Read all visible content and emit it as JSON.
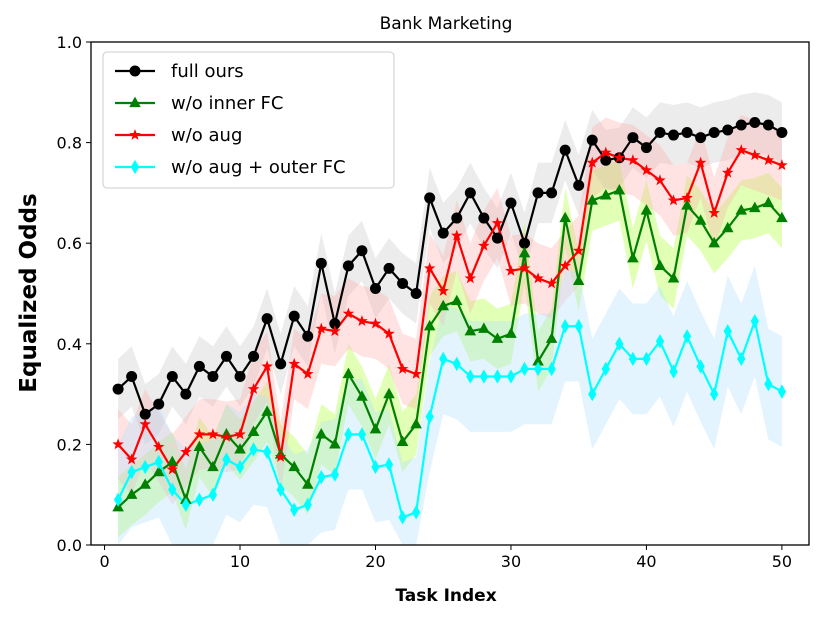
{
  "chart_data": {
    "type": "line",
    "title": "Bank Marketing",
    "xlabel": "Task Index",
    "ylabel": "Equalized Odds",
    "xlim": [
      -1,
      52
    ],
    "ylim": [
      0.0,
      1.0
    ],
    "xticks": [
      0,
      10,
      20,
      30,
      40,
      50
    ],
    "xtick_labels": [
      "0",
      "10",
      "20",
      "30",
      "40",
      "50"
    ],
    "yticks": [
      0.0,
      0.2,
      0.4,
      0.6,
      0.8,
      1.0
    ],
    "ytick_labels": [
      "0.0",
      "0.2",
      "0.4",
      "0.6",
      "0.8",
      "1.0"
    ],
    "grid": false,
    "legend_position": "upper-left",
    "x": [
      1,
      2,
      3,
      4,
      5,
      6,
      7,
      8,
      9,
      10,
      11,
      12,
      13,
      14,
      15,
      16,
      17,
      18,
      19,
      20,
      21,
      22,
      23,
      24,
      25,
      26,
      27,
      28,
      29,
      30,
      31,
      32,
      33,
      34,
      35,
      36,
      37,
      38,
      39,
      40,
      41,
      42,
      43,
      44,
      45,
      46,
      47,
      48,
      49,
      50
    ],
    "series": [
      {
        "name": "full ours",
        "color": "#000000",
        "band_color": "#c8c8c8",
        "marker": "circle",
        "values": [
          0.31,
          0.335,
          0.26,
          0.28,
          0.335,
          0.3,
          0.355,
          0.335,
          0.375,
          0.335,
          0.375,
          0.45,
          0.36,
          0.455,
          0.415,
          0.56,
          0.44,
          0.555,
          0.585,
          0.51,
          0.55,
          0.52,
          0.5,
          0.69,
          0.62,
          0.65,
          0.7,
          0.65,
          0.61,
          0.68,
          0.6,
          0.7,
          0.7,
          0.785,
          0.715,
          0.805,
          0.765,
          0.77,
          0.81,
          0.79,
          0.82,
          0.815,
          0.82,
          0.81,
          0.82,
          0.825,
          0.835,
          0.84,
          0.835,
          0.82
        ],
        "band": 0.06
      },
      {
        "name": "w/o inner FC",
        "color": "#008000",
        "band_color": "#adff2f",
        "marker": "triangle",
        "values": [
          0.075,
          0.1,
          0.12,
          0.145,
          0.165,
          0.09,
          0.195,
          0.155,
          0.22,
          0.19,
          0.225,
          0.265,
          0.18,
          0.155,
          0.12,
          0.22,
          0.2,
          0.34,
          0.295,
          0.23,
          0.3,
          0.205,
          0.24,
          0.435,
          0.475,
          0.485,
          0.425,
          0.43,
          0.41,
          0.42,
          0.58,
          0.365,
          0.41,
          0.65,
          0.525,
          0.685,
          0.695,
          0.705,
          0.57,
          0.665,
          0.555,
          0.53,
          0.675,
          0.645,
          0.6,
          0.63,
          0.665,
          0.67,
          0.68,
          0.65
        ],
        "band": 0.06
      },
      {
        "name": "w/o aug",
        "color": "#ff0000",
        "band_color": "#ffb0b0",
        "marker": "star",
        "values": [
          0.2,
          0.17,
          0.24,
          0.195,
          0.15,
          0.185,
          0.22,
          0.22,
          0.215,
          0.22,
          0.31,
          0.355,
          0.175,
          0.36,
          0.34,
          0.43,
          0.425,
          0.46,
          0.445,
          0.44,
          0.42,
          0.35,
          0.34,
          0.55,
          0.505,
          0.615,
          0.53,
          0.595,
          0.64,
          0.545,
          0.55,
          0.53,
          0.52,
          0.555,
          0.585,
          0.76,
          0.78,
          0.77,
          0.765,
          0.745,
          0.725,
          0.685,
          0.69,
          0.76,
          0.66,
          0.74,
          0.785,
          0.775,
          0.765,
          0.755
        ],
        "band": 0.07
      },
      {
        "name": "w/o aug + outer FC",
        "color": "#00ffff",
        "band_color": "#b0e0ff",
        "marker": "diamond",
        "values": [
          0.09,
          0.145,
          0.155,
          0.165,
          0.11,
          0.08,
          0.09,
          0.1,
          0.17,
          0.155,
          0.19,
          0.185,
          0.11,
          0.07,
          0.08,
          0.135,
          0.14,
          0.22,
          0.22,
          0.155,
          0.16,
          0.055,
          0.065,
          0.255,
          0.37,
          0.36,
          0.335,
          0.335,
          0.335,
          0.335,
          0.35,
          0.35,
          0.35,
          0.435,
          0.435,
          0.3,
          0.35,
          0.4,
          0.37,
          0.37,
          0.405,
          0.345,
          0.415,
          0.355,
          0.3,
          0.425,
          0.37,
          0.445,
          0.32,
          0.305
        ],
        "band": 0.11
      }
    ]
  }
}
